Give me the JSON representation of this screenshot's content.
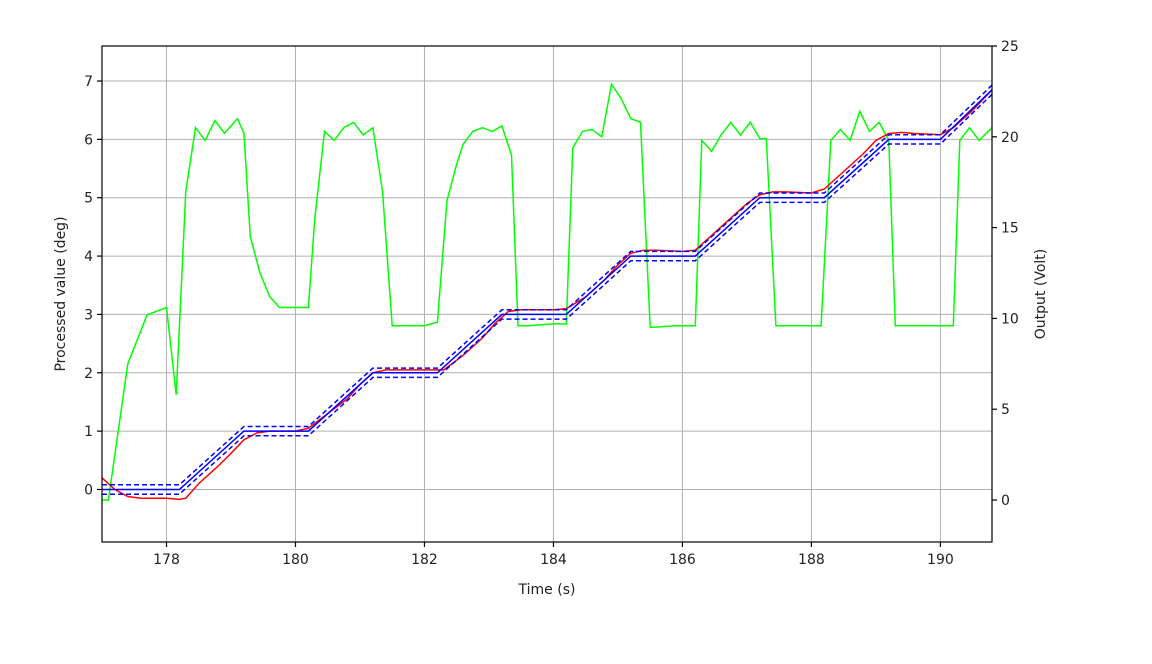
{
  "chart_data": {
    "type": "line",
    "xlabel": "Time (s)",
    "ylabel_left": "Processed value (deg)",
    "ylabel_right": "Output (Volt)",
    "xlim": [
      177.0,
      190.8
    ],
    "ylim_left": [
      -0.9,
      7.6
    ],
    "ylim_right": [
      -2.31,
      25.0
    ],
    "x_ticks": [
      178,
      180,
      182,
      184,
      186,
      188,
      190
    ],
    "y_ticks_left": [
      0,
      1,
      2,
      3,
      4,
      5,
      6,
      7
    ],
    "y_ticks_right": [
      0,
      5,
      10,
      15,
      20,
      25
    ],
    "grid": true,
    "series": [
      {
        "axis": "left",
        "color": "#ff0000",
        "style": "solid",
        "x": [
          177.0,
          177.2,
          177.4,
          177.6,
          178.0,
          178.2,
          178.3,
          178.5,
          178.8,
          179.0,
          179.2,
          179.4,
          179.6,
          180.0,
          180.2,
          180.5,
          180.8,
          181.0,
          181.2,
          181.4,
          181.6,
          182.0,
          182.3,
          182.6,
          182.9,
          183.1,
          183.3,
          183.5,
          184.0,
          184.2,
          184.5,
          184.8,
          185.0,
          185.2,
          185.4,
          185.6,
          186.0,
          186.2,
          186.5,
          186.8,
          187.0,
          187.2,
          187.4,
          187.6,
          188.0,
          188.2,
          188.5,
          188.8,
          189.0,
          189.2,
          189.4,
          189.6,
          190.0,
          190.2,
          190.5,
          190.8
        ],
        "y": [
          0.2,
          0.0,
          -0.12,
          -0.15,
          -0.15,
          -0.17,
          -0.15,
          0.1,
          0.4,
          0.62,
          0.85,
          0.97,
          1.0,
          1.0,
          1.05,
          1.3,
          1.55,
          1.8,
          2.0,
          2.05,
          2.05,
          2.05,
          2.05,
          2.3,
          2.6,
          2.85,
          3.05,
          3.08,
          3.08,
          3.1,
          3.3,
          3.6,
          3.85,
          4.05,
          4.1,
          4.1,
          4.08,
          4.1,
          4.4,
          4.7,
          4.9,
          5.05,
          5.1,
          5.1,
          5.08,
          5.15,
          5.45,
          5.75,
          5.98,
          6.1,
          6.12,
          6.1,
          6.08,
          6.2,
          6.5,
          6.85
        ]
      },
      {
        "axis": "left",
        "color": "#0000ff",
        "style": "solid",
        "x": [
          177.0,
          178.2,
          179.2,
          180.2,
          181.2,
          182.2,
          183.2,
          184.2,
          185.2,
          186.2,
          187.2,
          188.2,
          189.2,
          190.0,
          190.8
        ],
        "y": [
          0.0,
          0.0,
          1.0,
          1.0,
          2.0,
          2.0,
          3.0,
          3.0,
          4.0,
          4.0,
          5.0,
          5.0,
          6.0,
          6.0,
          6.85
        ]
      },
      {
        "axis": "left",
        "color": "#0000ff",
        "style": "dashed",
        "x": [
          177.0,
          178.2,
          179.2,
          180.2,
          181.2,
          182.2,
          183.2,
          184.2,
          185.2,
          186.2,
          187.2,
          188.2,
          189.2,
          190.0,
          190.8
        ],
        "y": [
          0.08,
          0.08,
          1.08,
          1.08,
          2.08,
          2.08,
          3.08,
          3.08,
          4.08,
          4.08,
          5.08,
          5.08,
          6.08,
          6.08,
          6.93
        ]
      },
      {
        "axis": "left",
        "color": "#0000ff",
        "style": "dashed",
        "x": [
          177.0,
          178.2,
          179.2,
          180.2,
          181.2,
          182.2,
          183.2,
          184.2,
          185.2,
          186.2,
          187.2,
          188.2,
          189.2,
          190.0,
          190.8
        ],
        "y": [
          -0.08,
          -0.08,
          0.92,
          0.92,
          1.92,
          1.92,
          2.92,
          2.92,
          3.92,
          3.92,
          4.92,
          4.92,
          5.92,
          5.92,
          6.77
        ]
      },
      {
        "axis": "right",
        "color": "#00ff00",
        "style": "solid",
        "x": [
          177.0,
          177.1,
          177.4,
          177.7,
          178.0,
          178.15,
          178.3,
          178.45,
          178.6,
          178.75,
          178.9,
          179.1,
          179.2,
          179.3,
          179.45,
          179.6,
          179.75,
          180.0,
          180.2,
          180.3,
          180.45,
          180.6,
          180.75,
          180.9,
          181.05,
          181.2,
          181.35,
          181.5,
          182.0,
          182.2,
          182.35,
          182.5,
          182.6,
          182.75,
          182.9,
          183.05,
          183.2,
          183.35,
          183.45,
          183.6,
          184.0,
          184.2,
          184.3,
          184.45,
          184.6,
          184.75,
          184.9,
          185.05,
          185.2,
          185.35,
          185.5,
          185.9,
          186.2,
          186.3,
          186.45,
          186.6,
          186.75,
          186.9,
          187.05,
          187.2,
          187.3,
          187.45,
          188.0,
          188.15,
          188.3,
          188.45,
          188.6,
          188.75,
          188.9,
          189.05,
          189.2,
          189.3,
          190.0,
          190.2,
          190.3,
          190.45,
          190.6,
          190.8
        ],
        "y": [
          0.0,
          0.0,
          7.5,
          10.2,
          10.6,
          5.8,
          17.0,
          20.5,
          19.8,
          20.9,
          20.2,
          21.0,
          20.2,
          14.5,
          12.5,
          11.2,
          10.6,
          10.6,
          10.6,
          15.5,
          20.3,
          19.8,
          20.5,
          20.8,
          20.1,
          20.5,
          17.0,
          9.6,
          9.6,
          9.8,
          16.5,
          18.5,
          19.6,
          20.3,
          20.5,
          20.3,
          20.6,
          19.0,
          9.6,
          9.6,
          9.7,
          9.7,
          19.4,
          20.3,
          20.4,
          20.0,
          22.9,
          22.1,
          21.0,
          20.8,
          9.5,
          9.6,
          9.6,
          19.8,
          19.2,
          20.1,
          20.8,
          20.1,
          20.8,
          19.9,
          19.9,
          9.6,
          9.6,
          9.6,
          19.8,
          20.4,
          19.8,
          21.4,
          20.3,
          20.8,
          19.8,
          9.6,
          9.6,
          9.6,
          19.8,
          20.5,
          19.8,
          20.5
        ]
      }
    ]
  }
}
